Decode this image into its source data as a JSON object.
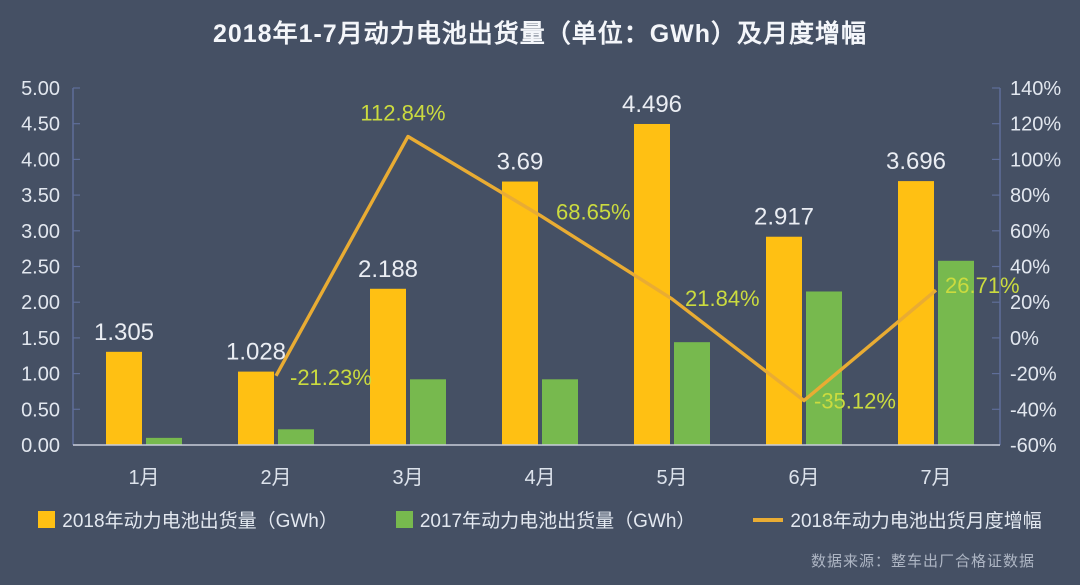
{
  "title": "2018年1-7月动力电池出货量（单位：GWh）及月度增幅",
  "source": "数据来源：整车出厂合格证数据",
  "colors": {
    "background": "#455064",
    "bar_2018": "#FFC013",
    "bar_2017": "#77B94E",
    "line": "#E9AC33",
    "line_label": "#CBDB3F",
    "bar_label": "#EAEDF3",
    "axis_text": "#E2E7EF",
    "axis_line": "#5F6E99",
    "baseline": "#C9CEDA",
    "month_text": "#DDE3EC"
  },
  "chart_data": {
    "type": "bar",
    "subtype": "grouped-bars-with-line",
    "title": "2018年1-7月动力电池出货量（单位：GWh）及月度增幅",
    "categories": [
      "1月",
      "2月",
      "3月",
      "4月",
      "5月",
      "6月",
      "7月"
    ],
    "series": [
      {
        "name": "2018年动力电池出货量（GWh）",
        "type": "bar",
        "axis": "left",
        "color": "#FFC013",
        "values": [
          1.305,
          1.028,
          2.188,
          3.69,
          4.496,
          2.917,
          3.696
        ],
        "labels": [
          "1.305",
          "1.028",
          "2.188",
          "3.69",
          "4.496",
          "2.917",
          "3.696"
        ]
      },
      {
        "name": "2017年动力电池出货量（GWh）",
        "type": "bar",
        "axis": "left",
        "color": "#77B94E",
        "values": [
          0.1,
          0.22,
          0.92,
          0.92,
          1.44,
          2.15,
          2.58
        ],
        "labels": [
          null,
          null,
          null,
          null,
          null,
          null,
          null
        ]
      },
      {
        "name": "2018年动力电池出货月度增幅",
        "type": "line",
        "axis": "right",
        "color": "#E9AC33",
        "values": [
          null,
          -21.23,
          112.84,
          68.65,
          21.84,
          -35.12,
          26.71
        ],
        "labels": [
          null,
          "-21.23%",
          "112.84%",
          "68.65%",
          "21.84%",
          "-35.12%",
          "26.71%"
        ]
      }
    ],
    "left_axis": {
      "min": 0,
      "max": 5,
      "step": 0.5,
      "ticks": [
        "5.00",
        "4.50",
        "4.00",
        "3.50",
        "3.00",
        "2.50",
        "2.00",
        "1.50",
        "1.00",
        "0.50",
        "0.00"
      ]
    },
    "right_axis": {
      "min": -60,
      "max": 140,
      "step": 20,
      "ticks": [
        "140%",
        "120%",
        "100%",
        "80%",
        "60%",
        "40%",
        "20%",
        "0%",
        "-20%",
        "-40%",
        "-60%"
      ]
    },
    "grid": false,
    "legend_position": "bottom"
  }
}
